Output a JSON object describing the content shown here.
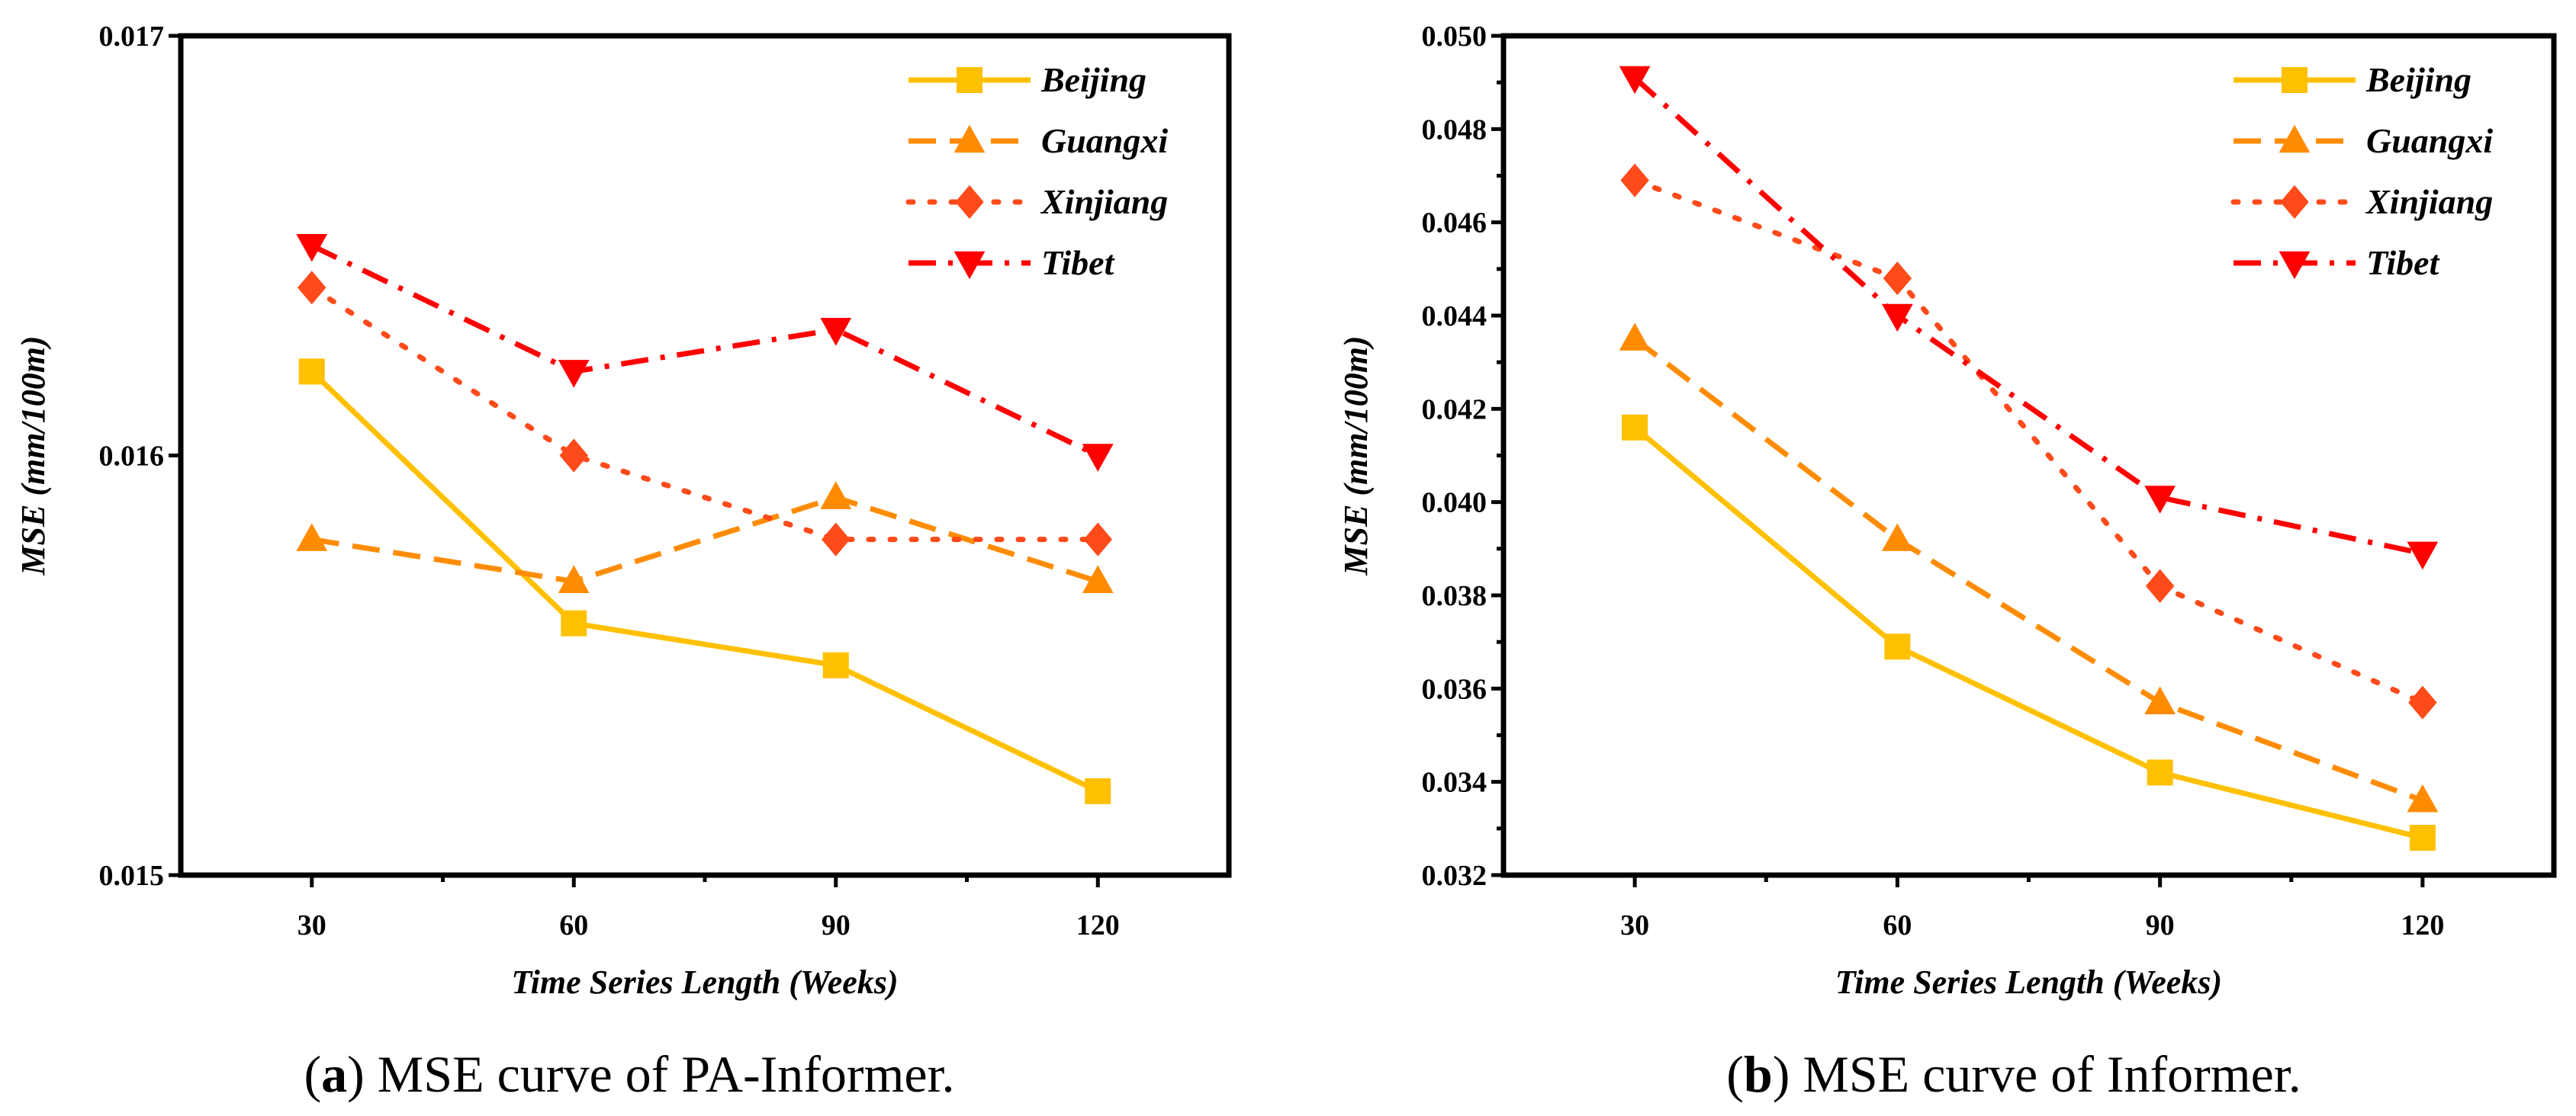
{
  "chart_data": [
    {
      "type": "line",
      "caption_letter": "a",
      "caption_text": " MSE curve of PA-Informer.",
      "caption_open": "(",
      "caption_close": ")",
      "xlabel": "Time Series Length (Weeks)",
      "ylabel": "MSE (mm/100m)",
      "x": [
        30,
        60,
        90,
        120
      ],
      "xlim": [
        15,
        135
      ],
      "xticks": [
        30,
        60,
        90,
        120
      ],
      "xminor": [
        45,
        75,
        105
      ],
      "ylim": [
        0.015,
        0.017
      ],
      "yticks": [
        "0.015",
        "0.016",
        "0.017"
      ],
      "yminor": [],
      "legend_position": "top-right",
      "series": [
        {
          "name": "Beijing",
          "values": [
            0.0162,
            0.0156,
            0.0155,
            0.0152
          ],
          "color": "#FFC000",
          "marker": "square",
          "dash": "solid"
        },
        {
          "name": "Guangxi",
          "values": [
            0.0158,
            0.0157,
            0.0159,
            0.0157
          ],
          "color": "#FF8C00",
          "marker": "triangle-up",
          "dash": "dash"
        },
        {
          "name": "Xinjiang",
          "values": [
            0.0164,
            0.016,
            0.0158,
            0.0158
          ],
          "color": "#FF4A1A",
          "marker": "diamond",
          "dash": "dot"
        },
        {
          "name": "Tibet",
          "values": [
            0.0165,
            0.0162,
            0.0163,
            0.016
          ],
          "color": "#FF0000",
          "marker": "triangle-down",
          "dash": "dashdot"
        }
      ]
    },
    {
      "type": "line",
      "caption_letter": "b",
      "caption_text": " MSE curve of Informer.",
      "caption_open": "(",
      "caption_close": ")",
      "xlabel": "Time Series Length (Weeks)",
      "ylabel": "MSE (mm/100m)",
      "x": [
        30,
        60,
        90,
        120
      ],
      "xlim": [
        15,
        135
      ],
      "xticks": [
        30,
        60,
        90,
        120
      ],
      "xminor": [
        45,
        75,
        105
      ],
      "ylim": [
        0.032,
        0.05
      ],
      "yticks": [
        "0.032",
        "0.034",
        "0.036",
        "0.038",
        "0.040",
        "0.042",
        "0.044",
        "0.046",
        "0.048",
        "0.050"
      ],
      "yminor": [
        0.033,
        0.035,
        0.037,
        0.039,
        0.041,
        0.043,
        0.045,
        0.047,
        0.049
      ],
      "legend_position": "top-right",
      "series": [
        {
          "name": "Beijing",
          "values": [
            0.0416,
            0.0369,
            0.0342,
            0.0328
          ],
          "color": "#FFC000",
          "marker": "square",
          "dash": "solid"
        },
        {
          "name": "Guangxi",
          "values": [
            0.0435,
            0.0392,
            0.0357,
            0.0336
          ],
          "color": "#FF8C00",
          "marker": "triangle-up",
          "dash": "dash"
        },
        {
          "name": "Xinjiang",
          "values": [
            0.0469,
            0.0448,
            0.0382,
            0.0357
          ],
          "color": "#FF4A1A",
          "marker": "diamond",
          "dash": "dot"
        },
        {
          "name": "Tibet",
          "values": [
            0.0491,
            0.044,
            0.0401,
            0.0389
          ],
          "color": "#FF0000",
          "marker": "triangle-down",
          "dash": "dashdot"
        }
      ]
    }
  ]
}
